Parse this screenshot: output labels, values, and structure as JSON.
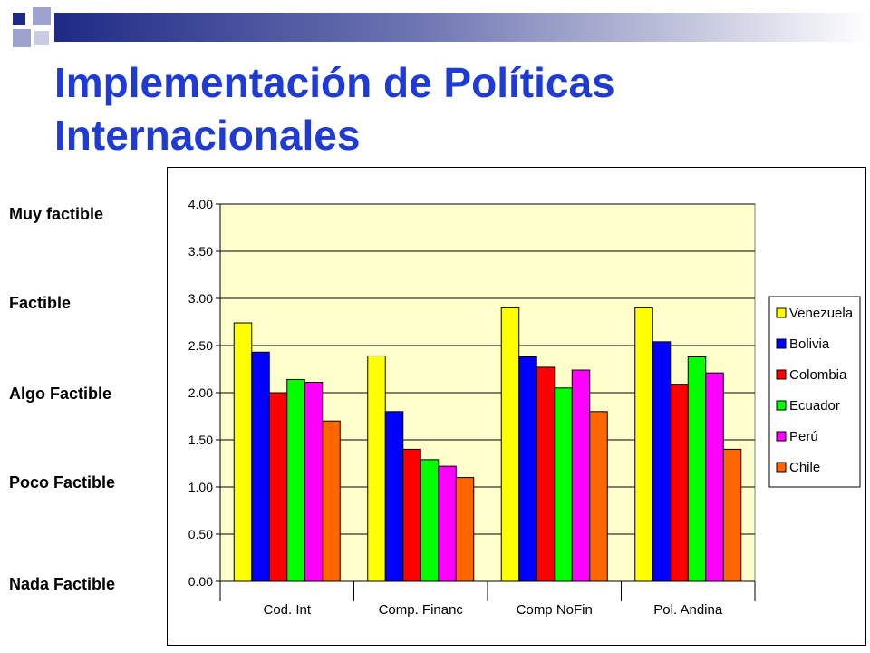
{
  "slide": {
    "title_line1": "Implementación de Políticas",
    "title_line2": "Internacionales",
    "title_color": "#1f3bd6",
    "accent_color": "#1e2a86"
  },
  "scale_labels": [
    "Muy factible",
    "Factible",
    "Algo Factible",
    "Poco Factible",
    "Nada Factible"
  ],
  "chart_data": {
    "type": "bar",
    "categories": [
      "Cod. Int",
      "Comp. Financ",
      "Comp NoFin",
      "Pol. Andina"
    ],
    "series": [
      {
        "name": "Venezuela",
        "color": "#ffff00",
        "values": [
          2.74,
          2.39,
          2.9,
          2.9
        ]
      },
      {
        "name": "Bolivia",
        "color": "#0000ff",
        "values": [
          2.43,
          1.8,
          2.38,
          2.54
        ]
      },
      {
        "name": "Colombia",
        "color": "#ff0000",
        "values": [
          2.0,
          1.4,
          2.27,
          2.09
        ]
      },
      {
        "name": "Ecuador",
        "color": "#00ff00",
        "values": [
          2.14,
          1.29,
          2.05,
          2.38
        ]
      },
      {
        "name": "Perú",
        "color": "#ff00ff",
        "values": [
          2.11,
          1.22,
          2.24,
          2.21
        ]
      },
      {
        "name": "Chile",
        "color": "#ff6600",
        "values": [
          1.7,
          1.1,
          1.8,
          1.4
        ]
      }
    ],
    "ylim": [
      0,
      4
    ],
    "yticks": [
      "0.00",
      "0.50",
      "1.00",
      "1.50",
      "2.00",
      "2.50",
      "3.00",
      "3.50",
      "4.00"
    ],
    "grid": true,
    "legend_position": "right",
    "plot_background": "#ffffcc"
  }
}
